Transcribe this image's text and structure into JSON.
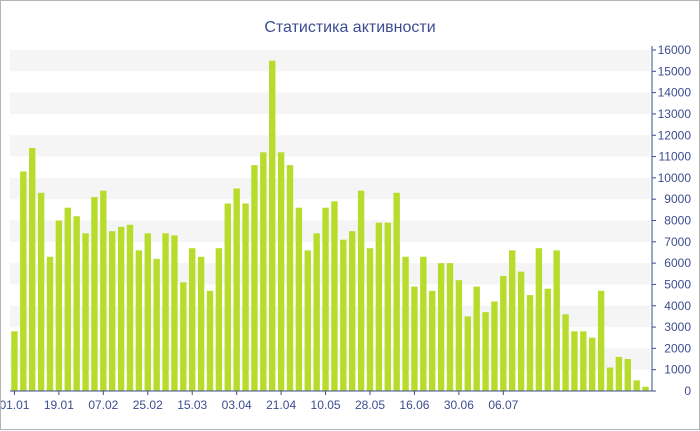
{
  "chart_data": {
    "type": "bar",
    "title": "Статистика активности",
    "xlabel": "",
    "ylabel": "",
    "ylim": [
      0,
      16000
    ],
    "y_ticks": [
      0,
      1000,
      2000,
      3000,
      4000,
      5000,
      6000,
      7000,
      8000,
      9000,
      10000,
      11000,
      12000,
      13000,
      14000,
      15000,
      16000
    ],
    "y_axis_side": "right",
    "x_tick_labels": [
      {
        "index": 0,
        "label": "01.01"
      },
      {
        "index": 5,
        "label": "19.01"
      },
      {
        "index": 10,
        "label": "07.02"
      },
      {
        "index": 15,
        "label": "25.02"
      },
      {
        "index": 20,
        "label": "15.03"
      },
      {
        "index": 25,
        "label": "03.04"
      },
      {
        "index": 30,
        "label": "21.04"
      },
      {
        "index": 35,
        "label": "10.05"
      },
      {
        "index": 40,
        "label": "28.05"
      },
      {
        "index": 45,
        "label": "16.06"
      },
      {
        "index": 50,
        "label": "30.06"
      },
      {
        "index": 55,
        "label": "06.07"
      }
    ],
    "values": [
      2800,
      10300,
      11400,
      9300,
      6300,
      8000,
      8600,
      8200,
      7400,
      9100,
      9400,
      7500,
      7700,
      7800,
      6600,
      7400,
      6200,
      7400,
      7300,
      5100,
      6700,
      6300,
      4700,
      6700,
      8800,
      9500,
      8800,
      10600,
      11200,
      15500,
      11200,
      10600,
      8600,
      6600,
      7400,
      8600,
      8900,
      7100,
      7500,
      9400,
      6700,
      7900,
      7900,
      9300,
      6300,
      4900,
      6300,
      4700,
      6000,
      6000,
      5200,
      3500,
      4900,
      3700,
      4200,
      5400,
      6600,
      5600,
      4500,
      6700,
      4800,
      6600,
      3600,
      2800,
      2800,
      2500,
      4700,
      1100,
      1600,
      1500,
      500,
      200
    ],
    "grid": "horizontal bands",
    "colors": {
      "bar": "#b8dc2c",
      "band": "#f5f5f5",
      "text": "#3d4d8f",
      "axis": "#3d4d8f"
    }
  }
}
